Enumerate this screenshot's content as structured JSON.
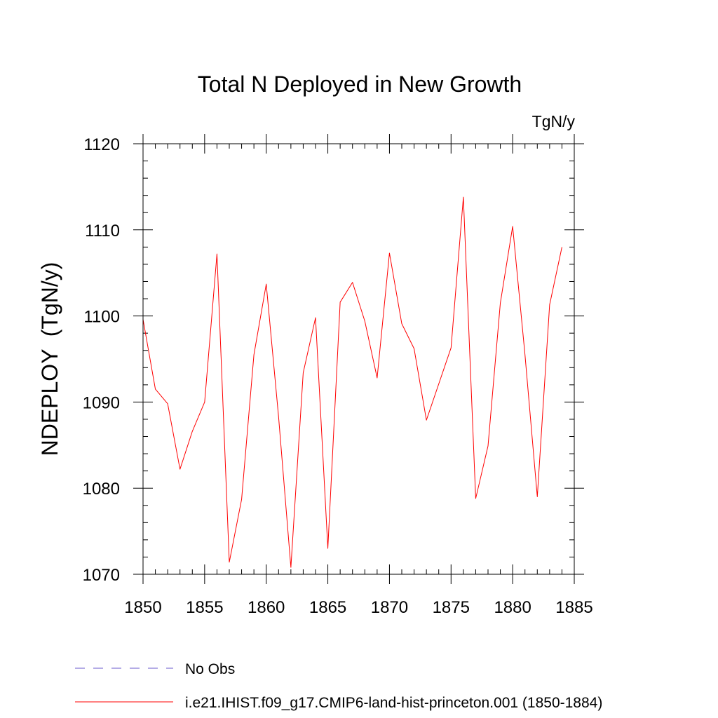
{
  "chart_data": {
    "type": "line",
    "title": "Total N Deployed in New Growth",
    "units_label": "TgN/y",
    "ylabel": "NDEPLOY  (TgN/y)",
    "xlabel": "",
    "xlim": [
      1850,
      1885
    ],
    "ylim": [
      1070,
      1120
    ],
    "x_ticks": [
      1850,
      1855,
      1860,
      1865,
      1870,
      1875,
      1880,
      1885
    ],
    "y_ticks": [
      1070,
      1080,
      1090,
      1100,
      1110,
      1120
    ],
    "grid": false,
    "legend_position": "bottom-left",
    "series": [
      {
        "name": "i.e21.IHIST.f09_g17.CMIP6-land-hist-princeton.001 (1850-1884)",
        "color": "#ff0000",
        "style": "solid",
        "x": [
          1850,
          1851,
          1852,
          1853,
          1854,
          1855,
          1856,
          1857,
          1858,
          1859,
          1860,
          1861,
          1862,
          1863,
          1864,
          1865,
          1866,
          1867,
          1868,
          1869,
          1870,
          1871,
          1872,
          1873,
          1874,
          1875,
          1876,
          1877,
          1878,
          1879,
          1880,
          1881,
          1882,
          1883,
          1884
        ],
        "values": [
          1099.6,
          1091.5,
          1089.8,
          1082.2,
          1086.6,
          1090.0,
          1107.2,
          1071.4,
          1078.7,
          1095.5,
          1103.7,
          1088.3,
          1070.8,
          1093.4,
          1099.8,
          1073.0,
          1101.6,
          1103.9,
          1099.4,
          1092.8,
          1107.3,
          1099.1,
          1096.2,
          1087.9,
          1092.1,
          1096.3,
          1113.8,
          1078.8,
          1084.9,
          1101.5,
          1110.4,
          1095.5,
          1079.0,
          1101.3,
          1108.0
        ]
      }
    ],
    "legend": [
      {
        "label": "No Obs",
        "color": "#6a5acd",
        "style": "dashed"
      },
      {
        "label": "i.e21.IHIST.f09_g17.CMIP6-land-hist-princeton.001 (1850-1884)",
        "color": "#ff0000",
        "style": "solid"
      }
    ]
  }
}
